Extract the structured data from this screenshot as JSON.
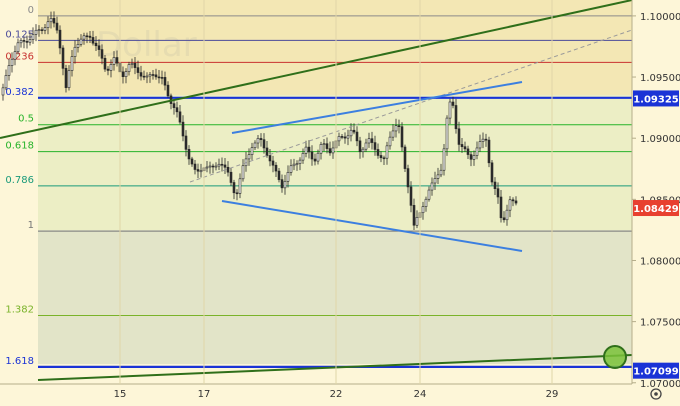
{
  "chart_data": {
    "type": "candlestick",
    "symbol_watermark": "Dollar",
    "x_ticks": [
      "15",
      "17",
      "22",
      "24",
      "29"
    ],
    "y_ticks": [
      "1.10000",
      "1.09500",
      "1.09000",
      "1.08500",
      "1.08000",
      "1.07500",
      "1.07000"
    ],
    "ylim": [
      1.0699,
      1.1013
    ],
    "price_labels": [
      {
        "value": 1.09325,
        "text": "1.09325",
        "color": "#1a33d6"
      },
      {
        "value": 1.08429,
        "text": "1.08429",
        "color": "#e8402f"
      },
      {
        "value": 1.07099,
        "text": "1.07099",
        "color": "#1a33d6"
      }
    ],
    "fib_levels": [
      {
        "label": "0",
        "value": 1.1,
        "color": "#8a8a8a"
      },
      {
        "label": "0.125",
        "value": 1.098,
        "color": "#4a4a9a"
      },
      {
        "label": "0.236",
        "value": 1.0962,
        "color": "#c8322f"
      },
      {
        "label": "0.382",
        "value": 1.0933,
        "color": "#1a33d6"
      },
      {
        "label": "0.5",
        "value": 1.0911,
        "color": "#27b32a"
      },
      {
        "label": "0.618",
        "value": 1.0889,
        "color": "#27b32a"
      },
      {
        "label": "0.786",
        "value": 1.0861,
        "color": "#1a9a7a"
      },
      {
        "label": "1",
        "value": 1.0824,
        "color": "#777777"
      },
      {
        "label": "1.382",
        "value": 1.0755,
        "color": "#7ab32a"
      },
      {
        "label": "1.618",
        "value": 1.0713,
        "color": "#1a33d6"
      }
    ],
    "colors": {
      "background": "#fdf6d8",
      "fib_zone_upper": "#f3e7b4",
      "fib_zone_lower": "#e2e4c8",
      "trend_green": "#2f6f1a",
      "channel_blue": "#3c7fe0",
      "dashed_gray": "#9a9a9a",
      "candle": "#2a2a2a"
    }
  }
}
